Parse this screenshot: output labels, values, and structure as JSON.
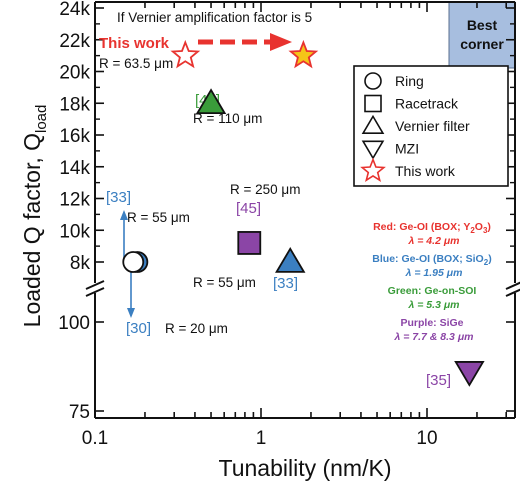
{
  "chart_data": {
    "type": "scatter",
    "xlabel": "Tunability (nm/K)",
    "ylabel_main": "Loaded Q factor, Q",
    "ylabel_sub": "load",
    "xscale": "log",
    "xlim": [
      0.1,
      30
    ],
    "x_ticks": [
      {
        "value": 0.1,
        "label": "0.1"
      },
      {
        "value": 1,
        "label": "1"
      },
      {
        "value": 10,
        "label": "10"
      }
    ],
    "y_ticks_upper": [
      {
        "value": 8000,
        "label": "8k"
      },
      {
        "value": 10000,
        "label": "10k"
      },
      {
        "value": 12000,
        "label": "12k"
      },
      {
        "value": 14000,
        "label": "14k"
      },
      {
        "value": 16000,
        "label": "16k"
      },
      {
        "value": 18000,
        "label": "18k"
      },
      {
        "value": 20000,
        "label": "20k"
      },
      {
        "value": 22000,
        "label": "22k"
      },
      {
        "value": 24000,
        "label": "24k"
      }
    ],
    "y_ticks_lower": [
      {
        "value": 100,
        "label": "100"
      },
      {
        "value": 75,
        "label": "75"
      }
    ],
    "points": [
      {
        "shape": "circle",
        "color": "#3b7fc1",
        "x": 0.18,
        "y": 8000,
        "label": ""
      },
      {
        "shape": "circle",
        "color": "#ffffff",
        "x": 0.17,
        "y": 8000,
        "label": ""
      },
      {
        "shape": "square",
        "color": "#8b45a6",
        "x": 0.85,
        "y": 9200,
        "label": "[45]"
      },
      {
        "shape": "triangle",
        "color": "#3b7fc1",
        "x": 1.5,
        "y": 8000,
        "label": "[33]"
      },
      {
        "shape": "triangle",
        "color": "#3a9c3a",
        "x": 0.5,
        "y": 18000,
        "label": "[44]"
      },
      {
        "shape": "triangle-down",
        "color": "#8b45a6",
        "x": 18,
        "y": 86,
        "label": "[35]"
      },
      {
        "shape": "star",
        "color": "#ffffff",
        "x": 0.35,
        "y": 21000,
        "label": "This work"
      },
      {
        "shape": "star",
        "color": "#f5c518",
        "x": 1.8,
        "y": 21000,
        "label": ""
      }
    ],
    "annotations": {
      "vernier_note": "If Vernier amplification factor is 5",
      "this_work_label": "This work",
      "r_this_work": "R = 63.5 μm",
      "r_44": "R = 110 μm",
      "r_45": "R = 250 μm",
      "r_33_tri": "R = 55 μm",
      "r_33_ring": "R = 55 μm",
      "r_30": "R = 20 μm",
      "ref_44": "[44]",
      "ref_45": "[45]",
      "ref_33_tri": "[33]",
      "ref_33_ring": "[33]",
      "ref_30": "[30]",
      "ref_35": "[35]"
    },
    "best_corner_line1": "Best",
    "best_corner_line2": "corner",
    "legend": [
      {
        "shape": "circle",
        "label": "Ring"
      },
      {
        "shape": "square",
        "label": "Racetrack"
      },
      {
        "shape": "triangle",
        "label": "Vernier filter"
      },
      {
        "shape": "triangle-down",
        "label": "MZI"
      },
      {
        "shape": "star",
        "label": "This work"
      }
    ],
    "materials": [
      {
        "color": "#e8332f",
        "line1": "Red: Ge-OI (BOX; Y",
        "sub1": "2",
        "mid1": "O",
        "sub2": "3",
        "end1": ")",
        "line2": "λ = 4.2 μm"
      },
      {
        "color": "#3b7fc1",
        "line1": "Blue: Ge-OI (BOX; SiO",
        "sub1": "2",
        "mid1": "",
        "sub2": "",
        "end1": ")",
        "line2": "λ = 1.95 μm"
      },
      {
        "color": "#3a9c3a",
        "line1": "Green: Ge-on-SOI",
        "sub1": "",
        "mid1": "",
        "sub2": "",
        "end1": "",
        "line2": "λ = 5.3 μm"
      },
      {
        "color": "#8b45a6",
        "line1": "Purple: SiGe",
        "sub1": "",
        "mid1": "",
        "sub2": "",
        "end1": "",
        "line2": "λ = 7.7 & 8.3 μm"
      }
    ]
  }
}
